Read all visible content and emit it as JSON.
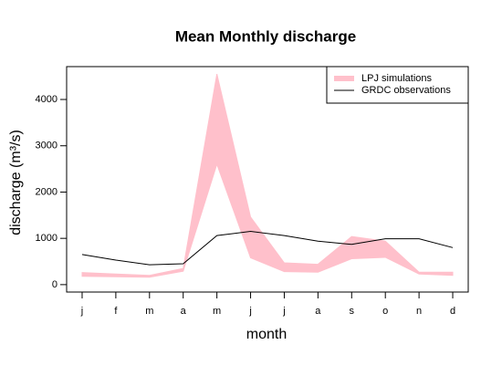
{
  "chart_data": {
    "type": "band-line",
    "title": "Mean Monthly discharge",
    "xlabel": "month",
    "ylabel": "discharge (m³/s)",
    "categories": [
      "j",
      "f",
      "m",
      "a",
      "m",
      "j",
      "j",
      "a",
      "s",
      "o",
      "n",
      "d"
    ],
    "series": [
      {
        "name": "LPJ simulations",
        "color": "#ffc0cb",
        "kind": "band",
        "lower": [
          180,
          170,
          160,
          290,
          2600,
          580,
          280,
          270,
          560,
          590,
          230,
          200
        ],
        "upper": [
          260,
          230,
          200,
          350,
          4550,
          1460,
          470,
          440,
          1040,
          940,
          270,
          270
        ]
      },
      {
        "name": "GRDC observations",
        "color": "#000000",
        "kind": "line",
        "values": [
          650,
          530,
          430,
          450,
          1060,
          1150,
          1060,
          940,
          870,
          990,
          990,
          800
        ]
      }
    ],
    "ylim": [
      -160,
      4710
    ],
    "yticks": [
      0,
      1000,
      2000,
      3000,
      4000
    ],
    "legend": "top-right",
    "grid": false
  }
}
